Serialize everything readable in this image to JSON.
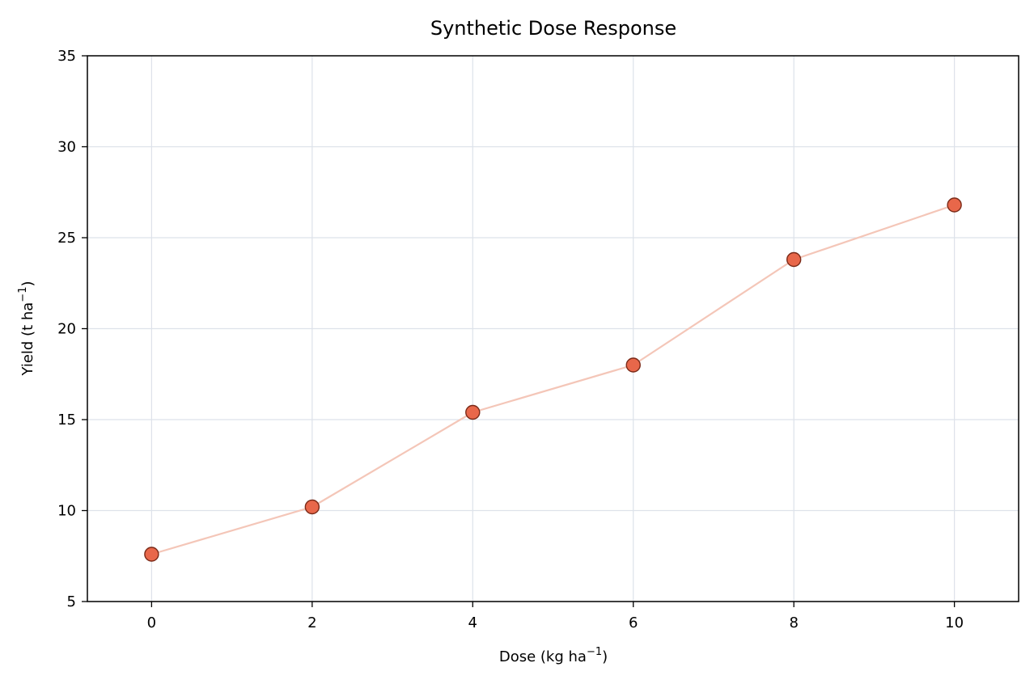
{
  "chart_data": {
    "type": "line",
    "title": "Synthetic Dose Response",
    "xlabel": "Dose (kg ha",
    "xlabel_sup": "−1",
    "xlabel_end": ")",
    "ylabel": "Yield (t ha",
    "ylabel_sup": "−1",
    "ylabel_end": ")",
    "xlim": [
      -0.8,
      10.8
    ],
    "ylim": [
      5,
      35
    ],
    "xticks": [
      0,
      2,
      4,
      6,
      8,
      10
    ],
    "yticks": [
      5,
      10,
      15,
      20,
      25,
      30,
      35
    ],
    "grid": true,
    "series": [
      {
        "x": [
          0,
          2,
          4,
          6,
          8,
          10
        ],
        "y": [
          7.6,
          10.2,
          15.4,
          18.0,
          23.8,
          26.8
        ]
      }
    ],
    "colors": {
      "line": "#f4c6b8",
      "marker_fill": "#e8674a",
      "marker_edge": "#7a2a18",
      "grid": "#dde2ea",
      "axes": "#000000"
    }
  }
}
